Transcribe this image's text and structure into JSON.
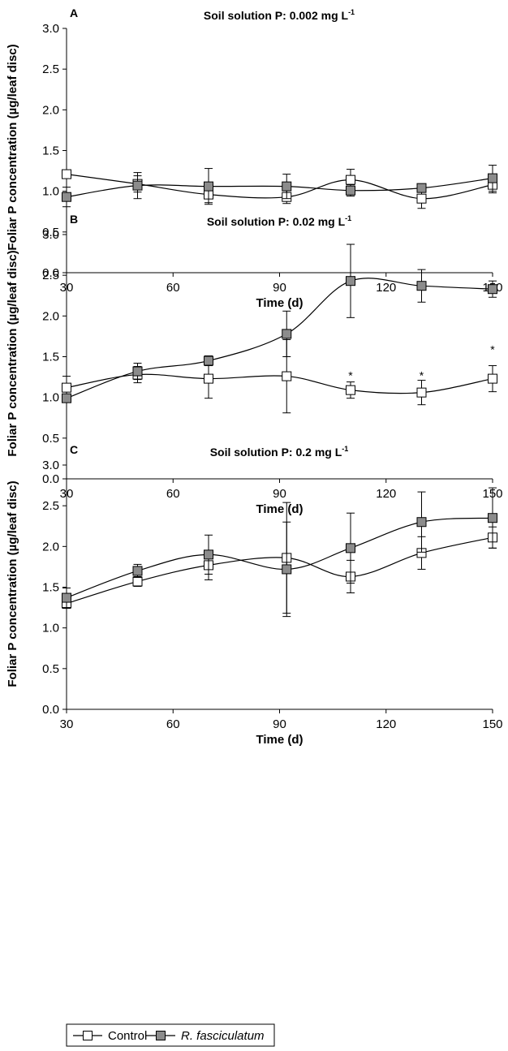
{
  "chart_data": [
    {
      "panel_label": "A",
      "type": "line",
      "title": "Soil solution P: 0.002 mg L",
      "title_sup": "-1",
      "xlabel": "Time (d)",
      "ylabel": "Foliar P concentration (µg/leaf disc)",
      "xlim": [
        30,
        150
      ],
      "ylim": [
        0,
        3.0
      ],
      "xticks": [
        "30",
        "60",
        "90",
        "120",
        "150"
      ],
      "yticks": [
        "0.0",
        "0.5",
        "1.0",
        "1.5",
        "2.0",
        "2.5",
        "3.0"
      ],
      "grid": false,
      "series": [
        {
          "name": "Control",
          "marker": "open-square",
          "x": [
            30,
            50,
            70,
            92,
            110,
            130,
            150
          ],
          "y": [
            1.21,
            1.09,
            0.96,
            0.93,
            1.14,
            0.91,
            1.08
          ],
          "err": [
            0.0,
            0.1,
            0.1,
            0.08,
            0.13,
            0.12,
            0.1
          ]
        },
        {
          "name": "R. fasciculatum",
          "marker": "filled-square",
          "x": [
            30,
            50,
            70,
            92,
            110,
            130,
            150
          ],
          "y": [
            0.93,
            1.07,
            1.06,
            1.06,
            1.01,
            1.04,
            1.16
          ],
          "err": [
            0.12,
            0.16,
            0.22,
            0.15,
            0.07,
            0.04,
            0.16
          ]
        }
      ],
      "annotations": []
    },
    {
      "panel_label": "B",
      "type": "line",
      "title": "Soil solution P: 0.02 mg L",
      "title_sup": "-1",
      "xlabel": "Time (d)",
      "ylabel": "Foliar P concentration (µg/leaf disc)",
      "xlim": [
        30,
        150
      ],
      "ylim": [
        0,
        3.0
      ],
      "xticks": [
        "30",
        "60",
        "90",
        "120",
        "150"
      ],
      "yticks": [
        "0.0",
        "0.5",
        "1.0",
        "1.5",
        "2.0",
        "2.5",
        "3.0"
      ],
      "grid": false,
      "series": [
        {
          "name": "Control",
          "marker": "open-square",
          "x": [
            30,
            50,
            70,
            92,
            110,
            130,
            150
          ],
          "y": [
            1.12,
            1.28,
            1.23,
            1.26,
            1.09,
            1.06,
            1.23
          ],
          "err": [
            0.14,
            0.1,
            0.24,
            0.45,
            0.1,
            0.15,
            0.16
          ]
        },
        {
          "name": "R. fasciculatum",
          "marker": "filled-square",
          "x": [
            30,
            50,
            70,
            92,
            110,
            130,
            150
          ],
          "y": [
            0.99,
            1.32,
            1.45,
            1.78,
            2.43,
            2.37,
            2.33
          ],
          "err": [
            0.05,
            0.1,
            0.06,
            0.28,
            0.45,
            0.2,
            0.1
          ]
        }
      ],
      "annotations": [
        {
          "text": "*",
          "x": 110,
          "y": 1.28
        },
        {
          "text": "*",
          "x": 130,
          "y": 1.28
        },
        {
          "text": "*",
          "x": 150,
          "y": 1.6
        }
      ]
    },
    {
      "panel_label": "C",
      "type": "line",
      "title": "Soil solution P: 0.2 mg L",
      "title_sup": "-1",
      "xlabel": "Time (d)",
      "ylabel": "Foliar P concentration (µg/leaf disc)",
      "xlim": [
        30,
        150
      ],
      "ylim": [
        0,
        3.0
      ],
      "xticks": [
        "30",
        "60",
        "90",
        "120",
        "150"
      ],
      "yticks": [
        "0.0",
        "0.5",
        "1.0",
        "1.5",
        "2.0",
        "2.5",
        "3.0"
      ],
      "grid": false,
      "series": [
        {
          "name": "Control",
          "marker": "open-square",
          "x": [
            30,
            50,
            70,
            92,
            110,
            130,
            150
          ],
          "y": [
            1.3,
            1.57,
            1.77,
            1.86,
            1.63,
            1.92,
            2.11
          ],
          "err": [
            0.06,
            0.06,
            0.18,
            0.68,
            0.2,
            0.2,
            0.13
          ]
        },
        {
          "name": "R. fasciculatum",
          "marker": "filled-square",
          "x": [
            30,
            50,
            70,
            92,
            110,
            130,
            150
          ],
          "y": [
            1.37,
            1.7,
            1.9,
            1.72,
            1.98,
            2.3,
            2.35
          ],
          "err": [
            0.12,
            0.08,
            0.24,
            0.58,
            0.43,
            0.37,
            0.37
          ]
        }
      ],
      "annotations": []
    }
  ],
  "legend": {
    "placement": "bottom-left",
    "items": [
      {
        "label": "Control",
        "marker": "open-square",
        "italic": false
      },
      {
        "label": "R. fasciculatum",
        "marker": "filled-square",
        "italic": true
      }
    ]
  },
  "colors": {
    "line": "#000000",
    "open_marker_fill": "#ffffff",
    "filled_marker_fill": "#8c8c8c"
  }
}
